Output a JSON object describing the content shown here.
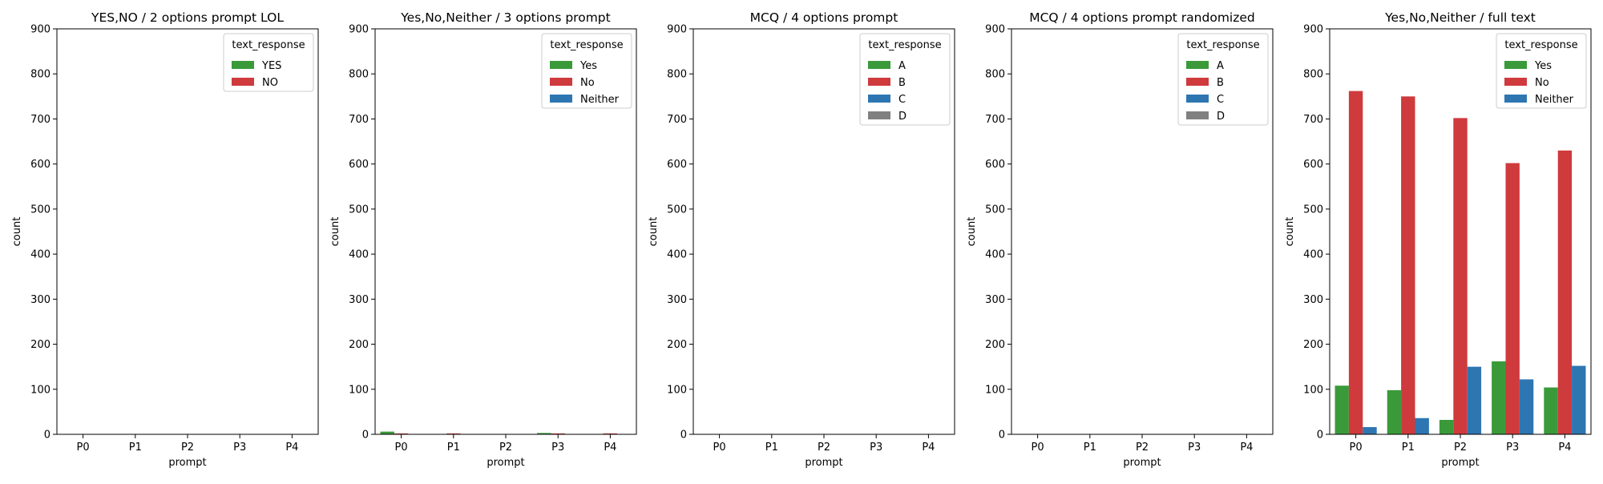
{
  "chart_data": [
    {
      "type": "bar",
      "title": "YES,NO / 2 options prompt LOL",
      "xlabel": "prompt",
      "ylabel": "count",
      "ylim": [
        0,
        900
      ],
      "yticks": [
        0,
        100,
        200,
        300,
        400,
        500,
        600,
        700,
        800,
        900
      ],
      "categories": [
        "P0",
        "P1",
        "P2",
        "P3",
        "P4"
      ],
      "legend": {
        "title": "text_response",
        "placement": "top-right"
      },
      "series": [
        {
          "name": "YES",
          "color": "#3a9a3a",
          "values": [
            0,
            0,
            0,
            0,
            0
          ]
        },
        {
          "name": "NO",
          "color": "#cf3a3d",
          "values": [
            0,
            0,
            0,
            0,
            0
          ]
        }
      ]
    },
    {
      "type": "bar",
      "title": "Yes,No,Neither / 3 options prompt",
      "xlabel": "prompt",
      "ylabel": "count",
      "ylim": [
        0,
        900
      ],
      "yticks": [
        0,
        100,
        200,
        300,
        400,
        500,
        600,
        700,
        800,
        900
      ],
      "categories": [
        "P0",
        "P1",
        "P2",
        "P3",
        "P4"
      ],
      "legend": {
        "title": "text_response",
        "placement": "top-right"
      },
      "series": [
        {
          "name": "Yes",
          "color": "#3a9a3a",
          "values": [
            6,
            0,
            0,
            3,
            0
          ]
        },
        {
          "name": "No",
          "color": "#cf3a3d",
          "values": [
            2,
            2,
            0,
            2,
            2
          ]
        },
        {
          "name": "Neither",
          "color": "#2e76b2",
          "values": [
            0,
            0,
            0,
            0,
            0
          ]
        }
      ]
    },
    {
      "type": "bar",
      "title": "MCQ / 4 options prompt",
      "xlabel": "prompt",
      "ylabel": "count",
      "ylim": [
        0,
        900
      ],
      "yticks": [
        0,
        100,
        200,
        300,
        400,
        500,
        600,
        700,
        800,
        900
      ],
      "categories": [
        "P0",
        "P1",
        "P2",
        "P3",
        "P4"
      ],
      "legend": {
        "title": "text_response",
        "placement": "top-right"
      },
      "series": [
        {
          "name": "A",
          "color": "#3a9a3a",
          "values": [
            0,
            0,
            0,
            0,
            0
          ]
        },
        {
          "name": "B",
          "color": "#cf3a3d",
          "values": [
            0,
            0,
            0,
            0,
            0
          ]
        },
        {
          "name": "C",
          "color": "#2e76b2",
          "values": [
            0,
            0,
            0,
            0,
            0
          ]
        },
        {
          "name": "D",
          "color": "#808080",
          "values": [
            0,
            0,
            0,
            0,
            0
          ]
        }
      ]
    },
    {
      "type": "bar",
      "title": "MCQ / 4 options prompt randomized",
      "xlabel": "prompt",
      "ylabel": "count",
      "ylim": [
        0,
        900
      ],
      "yticks": [
        0,
        100,
        200,
        300,
        400,
        500,
        600,
        700,
        800,
        900
      ],
      "categories": [
        "P0",
        "P1",
        "P2",
        "P3",
        "P4"
      ],
      "legend": {
        "title": "text_response",
        "placement": "top-right"
      },
      "series": [
        {
          "name": "A",
          "color": "#3a9a3a",
          "values": [
            0,
            0,
            0,
            0,
            0
          ]
        },
        {
          "name": "B",
          "color": "#cf3a3d",
          "values": [
            0,
            0,
            0,
            0,
            0
          ]
        },
        {
          "name": "C",
          "color": "#2e76b2",
          "values": [
            0,
            0,
            0,
            0,
            0
          ]
        },
        {
          "name": "D",
          "color": "#808080",
          "values": [
            0,
            0,
            0,
            0,
            0
          ]
        }
      ]
    },
    {
      "type": "bar",
      "title": "Yes,No,Neither / full text",
      "xlabel": "prompt",
      "ylabel": "count",
      "ylim": [
        0,
        900
      ],
      "yticks": [
        0,
        100,
        200,
        300,
        400,
        500,
        600,
        700,
        800,
        900
      ],
      "categories": [
        "P0",
        "P1",
        "P2",
        "P3",
        "P4"
      ],
      "legend": {
        "title": "text_response",
        "placement": "top-right"
      },
      "series": [
        {
          "name": "Yes",
          "color": "#3a9a3a",
          "values": [
            108,
            98,
            32,
            162,
            104
          ]
        },
        {
          "name": "No",
          "color": "#cf3a3d",
          "values": [
            762,
            750,
            702,
            602,
            630
          ]
        },
        {
          "name": "Neither",
          "color": "#2e76b2",
          "values": [
            16,
            36,
            150,
            122,
            152
          ]
        }
      ]
    }
  ]
}
